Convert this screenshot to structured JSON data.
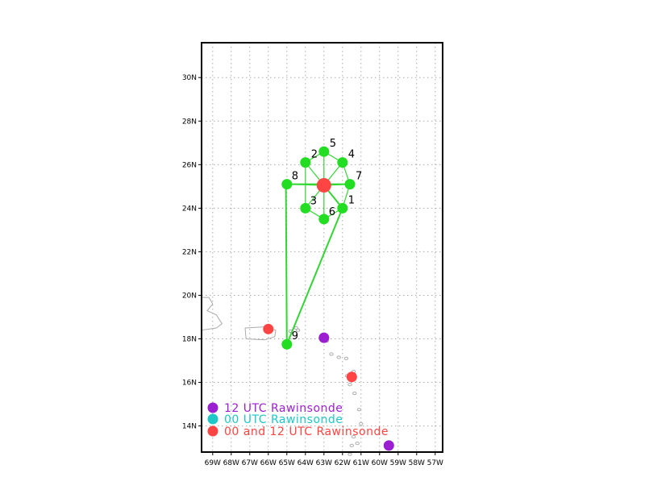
{
  "map": {
    "lon_range": [
      -69.6,
      -56.6
    ],
    "lat_range": [
      12.8,
      31.6
    ],
    "lon_ticks": [
      {
        "value": -69,
        "label": "69W"
      },
      {
        "value": -68,
        "label": "68W"
      },
      {
        "value": -67,
        "label": "67W"
      },
      {
        "value": -66,
        "label": "66W"
      },
      {
        "value": -65,
        "label": "65W"
      },
      {
        "value": -64,
        "label": "64W"
      },
      {
        "value": -63,
        "label": "63W"
      },
      {
        "value": -62,
        "label": "62W"
      },
      {
        "value": -61,
        "label": "61W"
      },
      {
        "value": -60,
        "label": "60W"
      },
      {
        "value": -59,
        "label": "59W"
      },
      {
        "value": -58,
        "label": "58W"
      },
      {
        "value": -57,
        "label": "57W"
      }
    ],
    "lat_ticks": [
      {
        "value": 14,
        "label": "14N"
      },
      {
        "value": 16,
        "label": "16N"
      },
      {
        "value": 18,
        "label": "18N"
      },
      {
        "value": 20,
        "label": "20N"
      },
      {
        "value": 22,
        "label": "22N"
      },
      {
        "value": 24,
        "label": "24N"
      },
      {
        "value": 26,
        "label": "26N"
      },
      {
        "value": 28,
        "label": "28N"
      },
      {
        "value": 30,
        "label": "30N"
      }
    ],
    "grid": true,
    "colors": {
      "track": "#33d633",
      "dropsonde": "#22dd22",
      "center": "#ff4444",
      "coastline": "#aaaaaa",
      "grid": "#aaaaaa",
      "purple": "#9b1fd1",
      "cyan": "#1ec8c8",
      "red": "#ff4444"
    }
  },
  "center": {
    "lon": -63.0,
    "lat": 25.05
  },
  "track": [
    {
      "lon": -63.0,
      "lat": 25.05
    },
    {
      "lon": -62.0,
      "lat": 24.0
    },
    {
      "lon": -65.0,
      "lat": 17.75
    },
    {
      "lon": -65.05,
      "lat": 25.1
    },
    {
      "lon": -61.6,
      "lat": 25.1
    }
  ],
  "spokes": [
    {
      "lon": -62.0,
      "lat": 24.0
    },
    {
      "lon": -64.0,
      "lat": 26.1
    },
    {
      "lon": -64.0,
      "lat": 24.0
    },
    {
      "lon": -62.0,
      "lat": 26.1
    },
    {
      "lon": -63.0,
      "lat": 26.6
    },
    {
      "lon": -63.0,
      "lat": 23.5
    },
    {
      "lon": -61.6,
      "lat": 25.1
    },
    {
      "lon": -65.0,
      "lat": 25.1
    }
  ],
  "polygon": [
    {
      "lon": -64.0,
      "lat": 26.1
    },
    {
      "lon": -63.0,
      "lat": 26.6
    },
    {
      "lon": -62.0,
      "lat": 26.1
    },
    {
      "lon": -61.6,
      "lat": 25.1
    },
    {
      "lon": -62.0,
      "lat": 24.0
    },
    {
      "lon": -63.0,
      "lat": 23.5
    },
    {
      "lon": -64.0,
      "lat": 24.0
    }
  ],
  "dropsondes": [
    {
      "id": "1",
      "lon": -62.0,
      "lat": 24.0,
      "dx": 7,
      "dy": -6
    },
    {
      "id": "2",
      "lon": -64.0,
      "lat": 26.1,
      "dx": 7,
      "dy": -6
    },
    {
      "id": "3",
      "lon": -64.0,
      "lat": 24.0,
      "dx": 6,
      "dy": -5
    },
    {
      "id": "4",
      "lon": -62.0,
      "lat": 26.1,
      "dx": 7,
      "dy": -6
    },
    {
      "id": "5",
      "lon": -63.0,
      "lat": 26.6,
      "dx": 7,
      "dy": -6
    },
    {
      "id": "6",
      "lon": -63.0,
      "lat": 23.5,
      "dx": 6,
      "dy": -5
    },
    {
      "id": "7",
      "lon": -61.6,
      "lat": 25.1,
      "dx": 7,
      "dy": -6
    },
    {
      "id": "8",
      "lon": -65.0,
      "lat": 25.1,
      "dx": 6,
      "dy": -6
    },
    {
      "id": "9",
      "lon": -65.0,
      "lat": 17.75,
      "dx": 6,
      "dy": -6
    }
  ],
  "rawinsondes": [
    {
      "type": "00_and_12",
      "lon": -66.0,
      "lat": 18.45
    },
    {
      "type": "12",
      "lon": -63.0,
      "lat": 18.05
    },
    {
      "type": "00_and_12",
      "lon": -61.5,
      "lat": 16.25
    },
    {
      "type": "12",
      "lon": -59.5,
      "lat": 13.1
    }
  ],
  "legend": {
    "items": [
      {
        "label": "12 UTC Rawinsonde",
        "color": "#9b1fd1"
      },
      {
        "label": "00 UTC Rawinsonde",
        "color": "#1ec8c8"
      },
      {
        "label": "00 and 12 UTC Rawinsonde",
        "color": "#ff4444"
      }
    ]
  }
}
